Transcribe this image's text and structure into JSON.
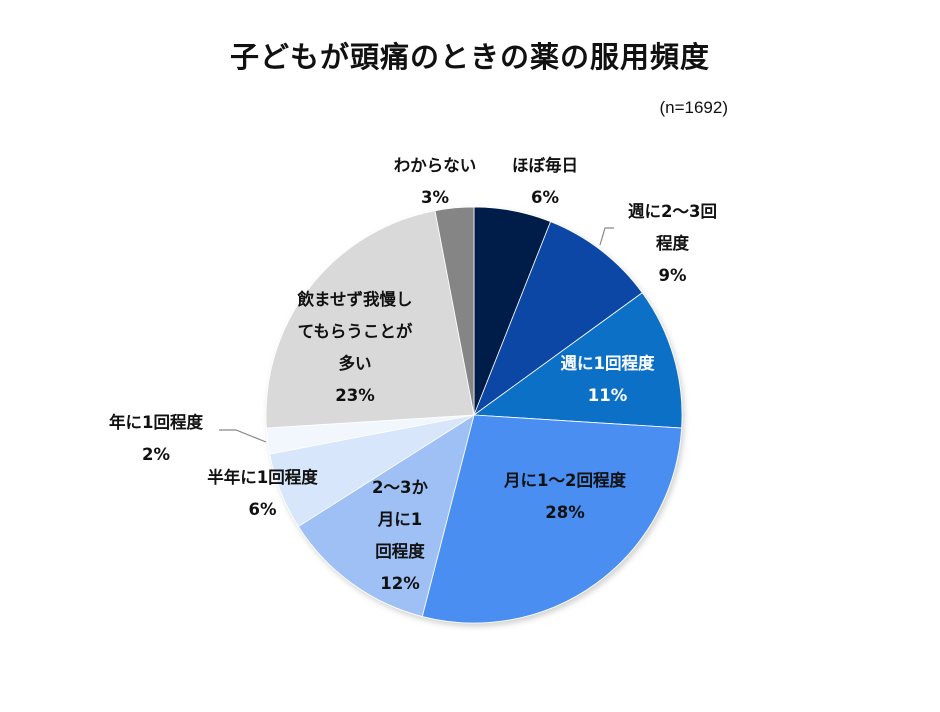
{
  "title": "子どもが頭痛のときの薬の服用頻度",
  "sample": "(n=1692)",
  "chart_data": {
    "type": "pie",
    "title": "子どもが頭痛のときの薬の服用頻度",
    "subtitle": "(n=1692)",
    "start_angle": "12 o'clock, clockwise",
    "categories": [
      "ほぼ毎日",
      "週に2〜3回程度",
      "週に1回程度",
      "月に1〜2回程度",
      "2〜3か月に1回程度",
      "半年に1回程度",
      "年に1回程度",
      "飲ませず我慢してもらうことが多い",
      "わからない"
    ],
    "values": [
      6,
      9,
      11,
      28,
      12,
      6,
      2,
      23,
      3
    ],
    "unit": "%",
    "colors": [
      "#021a4a",
      "#0a46a6",
      "#0a6fc7",
      "#4a8ef0",
      "#9ec0f5",
      "#d7e6fb",
      "#f2f6fd",
      "#d9d9d9",
      "#858585"
    ],
    "legend": "none (data labels)"
  },
  "labels": [
    {
      "lines": [
        "ほぼ毎日",
        "6%"
      ]
    },
    {
      "lines": [
        "週に2〜3回",
        "程度",
        "9%"
      ]
    },
    {
      "lines": [
        "週に1回程度",
        "11%"
      ]
    },
    {
      "lines": [
        "月に1〜2回程度",
        "28%"
      ]
    },
    {
      "lines": [
        "2〜3か",
        "月に1",
        "回程度",
        "12%"
      ]
    },
    {
      "lines": [
        "半年に1回程度",
        "6%"
      ]
    },
    {
      "lines": [
        "年に1回程度",
        "2%"
      ]
    },
    {
      "lines": [
        "飲ませず我慢し",
        "てもらうことが",
        "多い",
        "23%"
      ]
    },
    {
      "lines": [
        "わからない",
        "3%"
      ]
    }
  ]
}
